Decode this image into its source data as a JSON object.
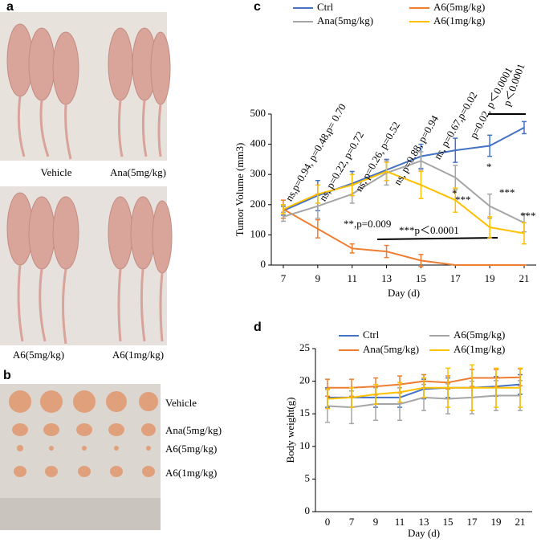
{
  "panel_labels": [
    "a",
    "b",
    "c",
    "d"
  ],
  "photo_a_labels": [
    "Vehicle",
    "Ana(5mg/kg)",
    "A6(5mg/kg)",
    "A6(1mg/kg)"
  ],
  "photo_b_labels": [
    "Vehicle",
    "Ana(5mg/kg)",
    "A6(5mg/kg)",
    "A6(1mg/kg)"
  ],
  "chart_data": [
    {
      "type": "line",
      "x_label": "Day (d)",
      "y_label": "Tumor Volume (mm3)",
      "x": [
        7,
        9,
        11,
        13,
        15,
        17,
        19,
        21
      ],
      "xlim": [
        6.3,
        21.7
      ],
      "xticks": [
        7,
        9,
        11,
        13,
        15,
        17,
        19,
        21
      ],
      "ylim": [
        0,
        500
      ],
      "yticks": [
        0,
        100,
        200,
        300,
        400,
        500
      ],
      "series": [
        {
          "name": "Ctrl",
          "color": "#4472c4",
          "values": [
            180,
            230,
            270,
            315,
            360,
            380,
            395,
            455
          ],
          "errors": [
            15,
            50,
            40,
            35,
            40,
            40,
            35,
            20
          ]
        },
        {
          "name": "A6(5mg/kg)",
          "color": "#ed7d31",
          "values": [
            185,
            120,
            55,
            45,
            15,
            0,
            0,
            0
          ],
          "errors": [
            30,
            30,
            15,
            20,
            20,
            0,
            0,
            0
          ]
        },
        {
          "name": "Ana(5mg/kg)",
          "color": "#a5a5a5",
          "values": [
            160,
            195,
            235,
            305,
            345,
            290,
            195,
            140
          ],
          "errors": [
            15,
            40,
            30,
            40,
            30,
            40,
            40,
            30
          ]
        },
        {
          "name": "A6(1mg/kg)",
          "color": "#ffc000",
          "values": [
            185,
            235,
            265,
            310,
            265,
            215,
            125,
            105
          ],
          "errors": [
            15,
            30,
            35,
            30,
            45,
            40,
            35,
            35
          ]
        }
      ],
      "annotations": [
        "ns,p=0.94, p=0.48,p= 0.70",
        "ns, p=0.22, p=0.72",
        "ns, p=0.26, p=0.52",
        "ns, p=0.88, p=0.94",
        "ns, p=0.67,p=0.02",
        "p=0.02, p＜0.0001",
        "p＜0.0001",
        "**,p=0.009",
        "***p＜0.0001",
        "*",
        "*",
        "***",
        "***",
        "***"
      ]
    },
    {
      "type": "line",
      "x_label": "Day (d)",
      "y_label": "Body weight(g)",
      "categories": [
        "0",
        "7",
        "9",
        "11",
        "13",
        "15",
        "17",
        "19",
        "21"
      ],
      "ylim": [
        0,
        25
      ],
      "yticks": [
        0,
        5,
        10,
        15,
        20,
        25
      ],
      "series": [
        {
          "name": "Ctrl",
          "color": "#4472c4",
          "values": [
            17.5,
            17.5,
            17.5,
            17.5,
            18.8,
            19,
            19,
            19.2,
            19.5
          ],
          "errors": [
            1.5,
            1.5,
            1.5,
            1.5,
            1.5,
            1.5,
            1.5,
            1.5,
            1.5
          ]
        },
        {
          "name": "A6(5mg/kg)",
          "color": "#a5a5a5",
          "values": [
            16.2,
            16,
            16.5,
            16.5,
            17.5,
            17.3,
            17.5,
            17.8,
            17.8
          ],
          "errors": [
            2.5,
            2.5,
            2.5,
            2.5,
            2,
            2.3,
            2.5,
            2.3,
            2.3
          ]
        },
        {
          "name": "Ana(5mg/kg)",
          "color": "#ed7d31",
          "values": [
            19,
            19,
            19.2,
            19.5,
            20,
            19.8,
            20.5,
            20.5,
            20.6
          ],
          "errors": [
            1.3,
            1.3,
            1.3,
            1.3,
            1,
            1,
            1.3,
            1.3,
            1.3
          ]
        },
        {
          "name": "A6(1mg/kg)",
          "color": "#ffc000",
          "values": [
            17.3,
            17.5,
            18,
            18.3,
            19,
            19,
            19,
            19,
            19
          ],
          "errors": [
            1.5,
            1.5,
            1.5,
            1.5,
            1.5,
            3,
            3.5,
            3,
            3
          ]
        }
      ]
    }
  ]
}
